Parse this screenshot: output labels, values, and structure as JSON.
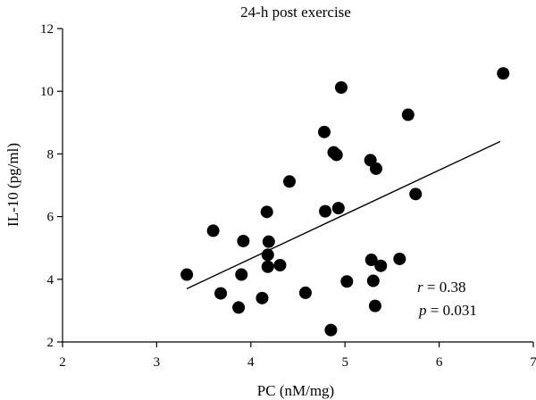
{
  "chart_data": {
    "type": "scatter",
    "title": "24-h post exercise",
    "xlabel": "PC (nM/mg)",
    "ylabel": "IL-10 (pg/ml)",
    "xlim": [
      2,
      7
    ],
    "ylim": [
      2,
      12
    ],
    "xticks": [
      "2",
      "3",
      "4",
      "5",
      "6",
      "7"
    ],
    "yticks": [
      "2",
      "4",
      "6",
      "8",
      "10",
      "12"
    ],
    "grid": false,
    "points": [
      {
        "x": 3.32,
        "y": 4.15
      },
      {
        "x": 3.6,
        "y": 5.55
      },
      {
        "x": 3.68,
        "y": 3.55
      },
      {
        "x": 3.87,
        "y": 3.1
      },
      {
        "x": 3.9,
        "y": 4.15
      },
      {
        "x": 3.92,
        "y": 5.22
      },
      {
        "x": 4.12,
        "y": 3.4
      },
      {
        "x": 4.17,
        "y": 6.15
      },
      {
        "x": 4.18,
        "y": 4.4
      },
      {
        "x": 4.18,
        "y": 4.78
      },
      {
        "x": 4.19,
        "y": 5.2
      },
      {
        "x": 4.31,
        "y": 4.45
      },
      {
        "x": 4.41,
        "y": 7.12
      },
      {
        "x": 4.58,
        "y": 3.57
      },
      {
        "x": 4.78,
        "y": 8.7
      },
      {
        "x": 4.79,
        "y": 6.17
      },
      {
        "x": 4.85,
        "y": 2.38
      },
      {
        "x": 4.88,
        "y": 8.05
      },
      {
        "x": 4.91,
        "y": 7.97
      },
      {
        "x": 4.93,
        "y": 6.27
      },
      {
        "x": 4.96,
        "y": 10.12
      },
      {
        "x": 5.02,
        "y": 3.93
      },
      {
        "x": 5.27,
        "y": 7.8
      },
      {
        "x": 5.28,
        "y": 4.62
      },
      {
        "x": 5.3,
        "y": 3.95
      },
      {
        "x": 5.32,
        "y": 3.15
      },
      {
        "x": 5.33,
        "y": 7.53
      },
      {
        "x": 5.38,
        "y": 4.43
      },
      {
        "x": 5.58,
        "y": 4.65
      },
      {
        "x": 5.67,
        "y": 9.25
      },
      {
        "x": 5.75,
        "y": 6.72
      },
      {
        "x": 6.68,
        "y": 10.57
      }
    ],
    "fit_line": {
      "x": [
        3.32,
        6.65
      ],
      "y": [
        3.7,
        8.4
      ]
    },
    "annotations": {
      "r_symbol": "r",
      "r_value": " = 0.38",
      "p_symbol": "p",
      "p_value": " = 0.031"
    }
  }
}
